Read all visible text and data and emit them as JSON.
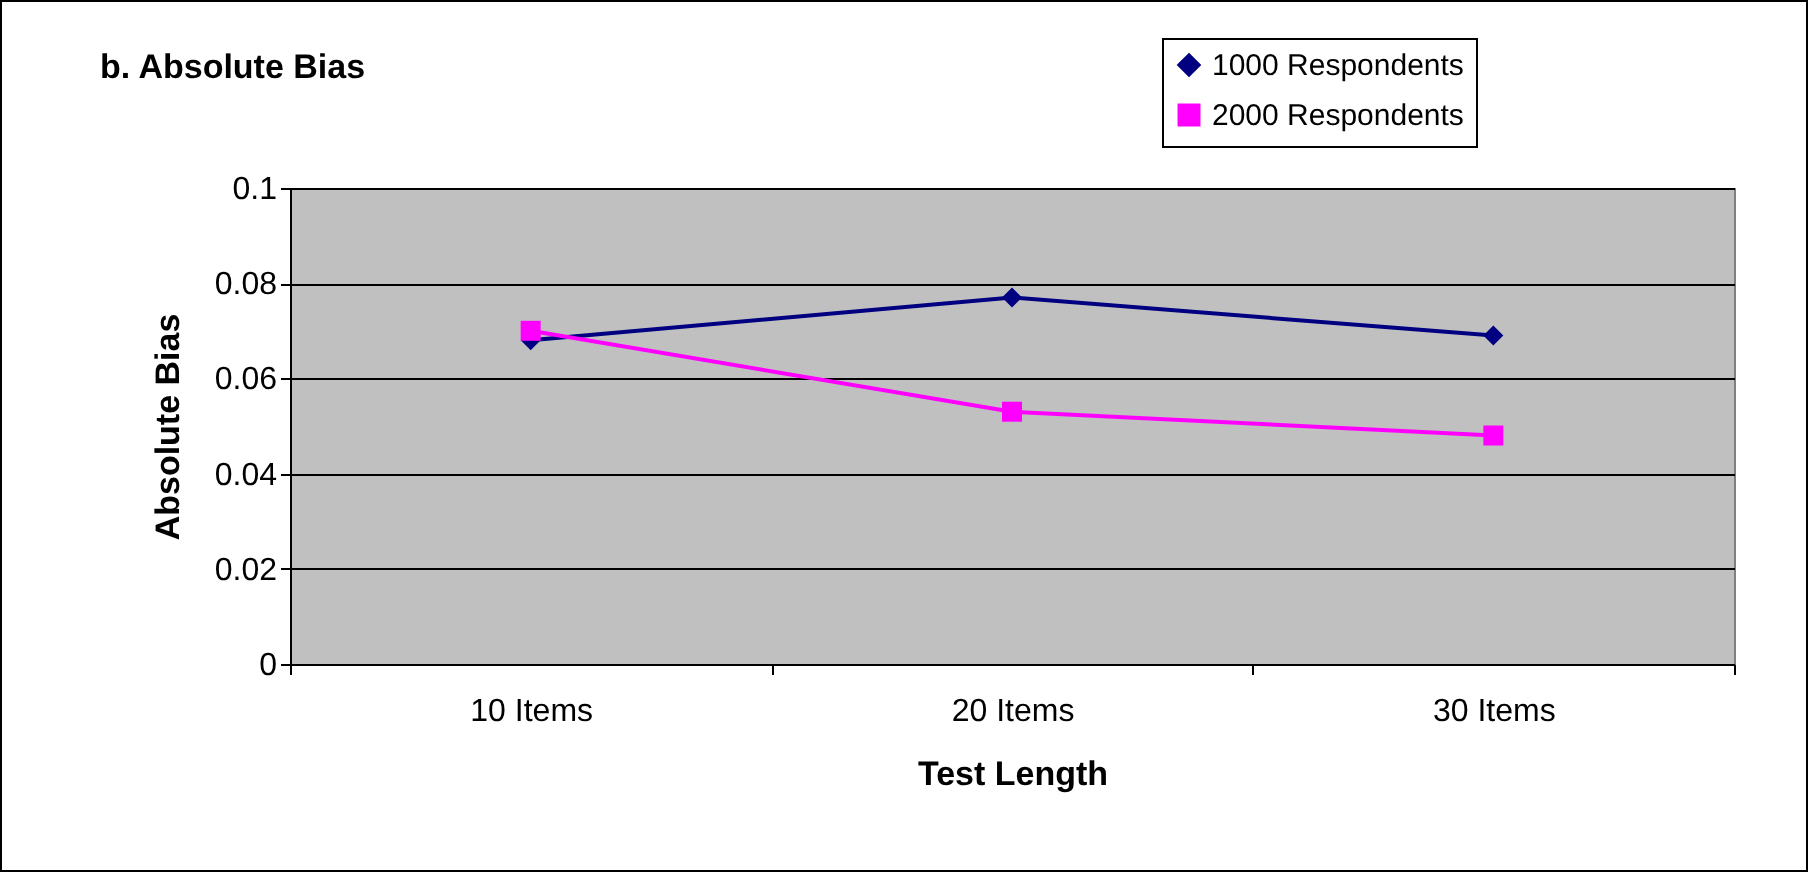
{
  "chart_data": {
    "type": "line",
    "title": "b. Absolute Bias",
    "xlabel": "Test Length",
    "ylabel": "Absolute Bias",
    "categories": [
      "10 Items",
      "20 Items",
      "30 Items"
    ],
    "series": [
      {
        "name": "1000 Respondents",
        "color": "#000080",
        "marker": "diamond",
        "values": [
          0.068,
          0.077,
          0.069
        ]
      },
      {
        "name": "2000 Respondents",
        "color": "#ff00ff",
        "marker": "square",
        "values": [
          0.07,
          0.053,
          0.048
        ]
      }
    ],
    "ylim": [
      0,
      0.1
    ],
    "yticks": [
      0,
      0.02,
      0.04,
      0.06,
      0.08,
      0.1
    ],
    "grid": "y",
    "legend": "top right"
  }
}
